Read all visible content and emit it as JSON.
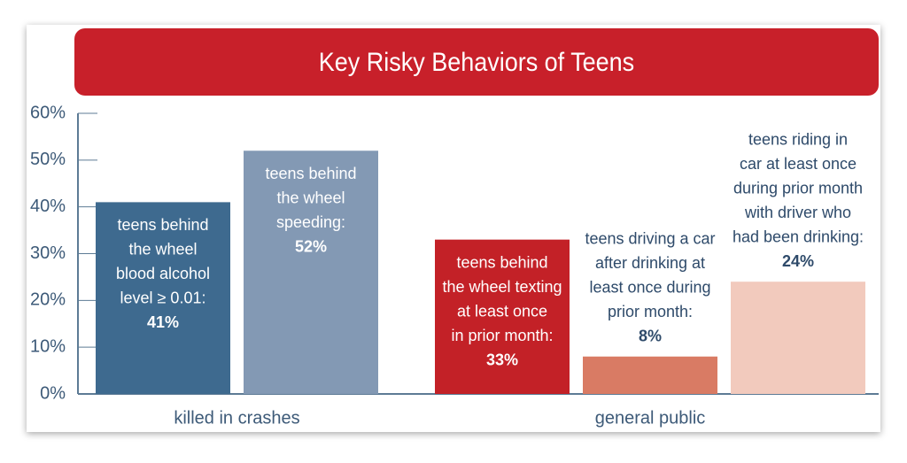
{
  "chart_data": {
    "type": "bar",
    "title": "Key Risky Behaviors of Teens",
    "series": [
      {
        "name": "killed in crashes",
        "categories": [
          [
            "teens behind",
            "the wheel",
            "blood alcohol",
            "level ≥ 0.01:"
          ],
          [
            "teens behind",
            "the wheel",
            "speeding:"
          ]
        ],
        "values": [
          41,
          52
        ],
        "value_labels": [
          "41%",
          "52%"
        ],
        "colors": [
          "#3e6a8f",
          "#8399b4"
        ]
      },
      {
        "name": "general public",
        "categories": [
          [
            "teens behind",
            "the wheel texting",
            "at least once",
            "in prior month:"
          ],
          [
            "teens driving a car",
            "after drinking at",
            "least once during",
            "prior month:"
          ],
          [
            "teens riding in",
            "car at least once",
            "during prior month",
            "with driver who",
            "had been drinking:"
          ]
        ],
        "values": [
          33,
          8,
          24
        ],
        "value_labels": [
          "33%",
          "8%",
          "24%"
        ],
        "colors": [
          "#c32127",
          "#d97b64",
          "#f2cabd"
        ]
      }
    ],
    "ylim": [
      0,
      60
    ],
    "yticks": [
      {
        "value": 0,
        "label": "0%"
      },
      {
        "value": 10,
        "label": "10%"
      },
      {
        "value": 20,
        "label": "20%"
      },
      {
        "value": 30,
        "label": "30%"
      },
      {
        "value": 40,
        "label": "40%"
      },
      {
        "value": 50,
        "label": "50%"
      },
      {
        "value": 60,
        "label": "60%"
      }
    ]
  }
}
